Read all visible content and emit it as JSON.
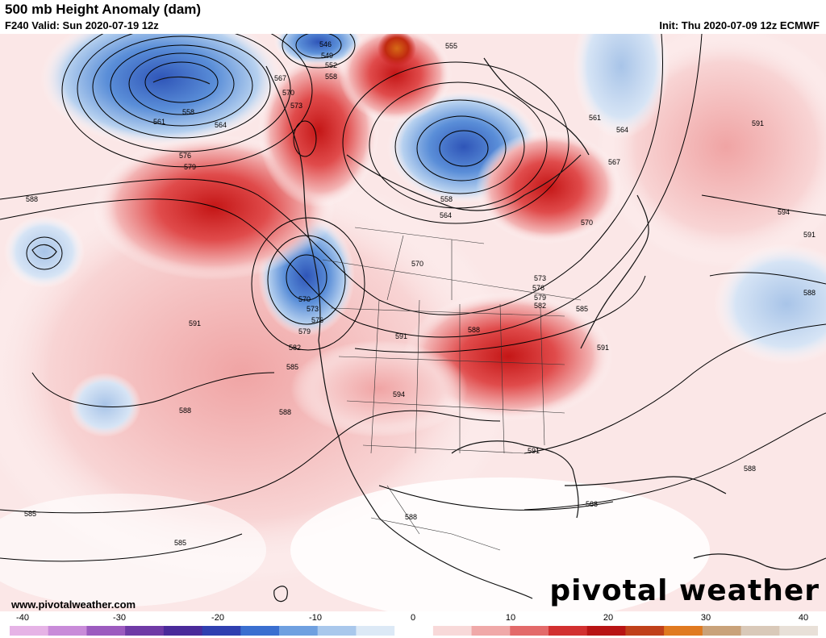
{
  "header": {
    "title": "500 mb Height Anomaly (dam)",
    "valid": "F240 Valid: Sun 2020-07-19 12z",
    "init": "Init: Thu 2020-07-09 12z ECMWF"
  },
  "footer": {
    "url": "www.pivotalweather.com",
    "brand": "pivotal weather"
  },
  "colorbar": {
    "ticks": [
      "-40",
      "-30",
      "-20",
      "-10",
      "0",
      "10",
      "20",
      "30",
      "40"
    ],
    "colors": [
      "#e6b3e6",
      "#c98bd9",
      "#9c5bbf",
      "#6f3aa6",
      "#4a2a9a",
      "#2f3fb0",
      "#3a6fd0",
      "#6fa0e0",
      "#a9c8ec",
      "#dce9f6",
      "#ffffff",
      "#f8d9d9",
      "#f0a9a9",
      "#e36a6a",
      "#d23030",
      "#b81414",
      "#c0401a",
      "#e07a20",
      "#c9a27a",
      "#d9c9b9",
      "#e8e0d8"
    ]
  },
  "contour_labels": [
    "546",
    "549",
    "552",
    "555",
    "558",
    "561",
    "564",
    "567",
    "570",
    "573",
    "576",
    "579",
    "582",
    "585",
    "588",
    "591",
    "594"
  ],
  "colors": {
    "ocean": "#ffffff",
    "neg_anomaly": "#4a7fd0",
    "pos_anomaly": "#d62a2a",
    "contour": "#000000"
  }
}
